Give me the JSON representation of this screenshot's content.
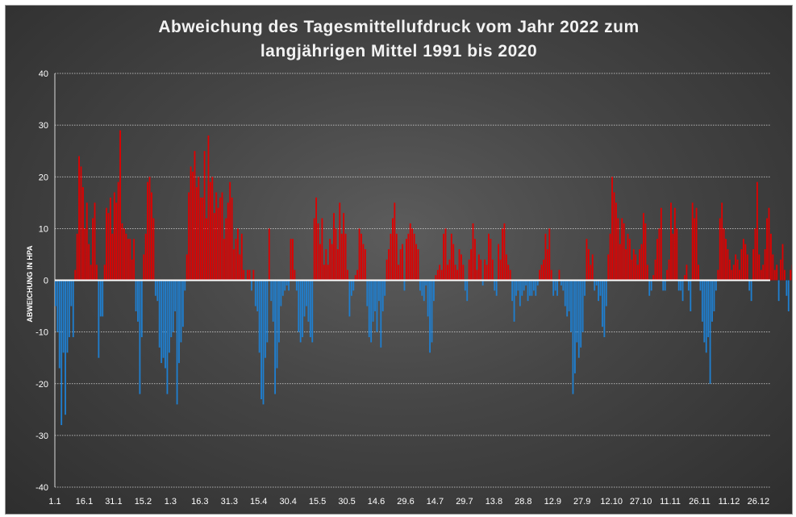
{
  "chart_data": {
    "type": "bar",
    "title_line1": "Abweichung des Tagesmittellufdruck vom Jahr 2022 zum",
    "title_line2": "langjährigen Mittel 1991 bis 2020",
    "ylabel": "ABWEICHUNG IN HPA",
    "xlabel": "",
    "ylim": [
      -40,
      40
    ],
    "yticks": [
      40,
      30,
      20,
      10,
      0,
      -10,
      -20,
      -30,
      -40
    ],
    "x_tick_labels": [
      {
        "day": 1,
        "label": "1.1"
      },
      {
        "day": 16,
        "label": "16.1"
      },
      {
        "day": 31,
        "label": "31.1"
      },
      {
        "day": 46,
        "label": "15.2"
      },
      {
        "day": 60,
        "label": "1.3"
      },
      {
        "day": 75,
        "label": "16.3"
      },
      {
        "day": 90,
        "label": "31.3"
      },
      {
        "day": 105,
        "label": "15.4"
      },
      {
        "day": 120,
        "label": "30.4"
      },
      {
        "day": 135,
        "label": "15.5"
      },
      {
        "day": 150,
        "label": "30.5"
      },
      {
        "day": 165,
        "label": "14.6"
      },
      {
        "day": 180,
        "label": "29.6"
      },
      {
        "day": 195,
        "label": "14.7"
      },
      {
        "day": 210,
        "label": "29.7"
      },
      {
        "day": 225,
        "label": "13.8"
      },
      {
        "day": 240,
        "label": "28.8"
      },
      {
        "day": 255,
        "label": "12.9"
      },
      {
        "day": 270,
        "label": "27.9"
      },
      {
        "day": 285,
        "label": "12.10"
      },
      {
        "day": 300,
        "label": "27.10"
      },
      {
        "day": 315,
        "label": "11.11"
      },
      {
        "day": 330,
        "label": "26.11"
      },
      {
        "day": 345,
        "label": "11.12"
      },
      {
        "day": 360,
        "label": "26.12"
      }
    ],
    "positive_color": "#e00000",
    "negative_color": "#1f7fd0",
    "grid": true,
    "values": [
      -5,
      -10,
      -17,
      -28,
      -14,
      -26,
      -14,
      -11,
      -5,
      -11,
      2,
      9,
      24,
      22,
      18,
      10,
      15,
      7,
      3,
      12,
      15,
      3,
      -15,
      -7,
      -7,
      3,
      14,
      13,
      16,
      9,
      17,
      15,
      19,
      29,
      11,
      10,
      9,
      8,
      8,
      4,
      8,
      -6,
      -8,
      -22,
      -11,
      5,
      9,
      19,
      20,
      17,
      12,
      -3,
      -4,
      -13,
      -16,
      -15,
      -17,
      -22,
      -14,
      -11,
      -10,
      -6,
      -24,
      -16,
      -12,
      -9,
      -2,
      5,
      17,
      22,
      21,
      25,
      18,
      20,
      16,
      16,
      25,
      12,
      28,
      19,
      20,
      13,
      17,
      14,
      16,
      17,
      8,
      12,
      15,
      19,
      16,
      6,
      8,
      10,
      5,
      9,
      2,
      0,
      2,
      2,
      -2,
      2,
      -5,
      -6,
      -14,
      -23,
      -24,
      -15,
      -12,
      10,
      -4,
      -8,
      -22,
      -17,
      -12,
      -5,
      -3,
      -2,
      -1,
      -2,
      8,
      8,
      2,
      -2,
      -10,
      -12,
      -11,
      -7,
      -5,
      -8,
      -11,
      -12,
      12,
      16,
      11,
      7,
      12,
      3,
      6,
      3,
      8,
      7,
      13,
      10,
      6,
      15,
      9,
      13,
      9,
      2,
      -7,
      -3,
      -2,
      1,
      2,
      10,
      9,
      7,
      6,
      -5,
      -11,
      -12,
      -8,
      -6,
      -10,
      -4,
      -13,
      -6,
      -3,
      4,
      6,
      9,
      12,
      15,
      9,
      3,
      6,
      7,
      -2,
      8,
      9,
      11,
      10,
      9,
      7,
      6,
      -2,
      -3,
      -4,
      -1,
      -7,
      -14,
      -12,
      -4,
      1,
      2,
      3,
      2,
      9,
      10,
      3,
      4,
      9,
      7,
      3,
      2,
      6,
      5,
      3,
      -2,
      -4,
      4,
      6,
      11,
      8,
      2,
      5,
      4,
      -1,
      4,
      3,
      9,
      8,
      4,
      -2,
      -3,
      7,
      4,
      10,
      11,
      5,
      3,
      2,
      -4,
      -8,
      -3,
      -2,
      -5,
      -3,
      -2,
      -1,
      -4,
      -3,
      -3,
      -2,
      -3,
      -1,
      2,
      3,
      4,
      9,
      6,
      10,
      2,
      -3,
      -2,
      -3,
      2,
      -1,
      -2,
      -5,
      -7,
      -6,
      -10,
      -22,
      -18,
      -12,
      -15,
      -13,
      -10,
      -3,
      8,
      6,
      3,
      5,
      -2,
      -1,
      -4,
      -3,
      -9,
      -11,
      -5,
      5,
      9,
      20,
      17,
      15,
      12,
      7,
      12,
      11,
      6,
      9,
      8,
      4,
      6,
      5,
      3,
      6,
      7,
      13,
      11,
      3,
      -3,
      -2,
      1,
      4,
      8,
      10,
      14,
      -2,
      -2,
      2,
      4,
      15,
      9,
      14,
      10,
      -2,
      -2,
      -4,
      1,
      3,
      -2,
      -6,
      15,
      12,
      14,
      3,
      -2,
      -8,
      -12,
      -14,
      -11,
      -20,
      -8,
      -6,
      -2,
      2,
      12,
      15,
      10,
      8,
      6,
      4,
      2,
      3,
      5,
      4,
      2,
      6,
      8,
      7,
      5,
      -2,
      -4,
      6,
      10,
      19,
      5,
      2,
      3,
      6,
      12,
      14,
      9,
      5,
      2,
      3,
      -4,
      4,
      7,
      2,
      -3,
      -6,
      2,
      3,
      -4,
      2,
      -2,
      -3,
      -2,
      1,
      2,
      -2
    ]
  }
}
